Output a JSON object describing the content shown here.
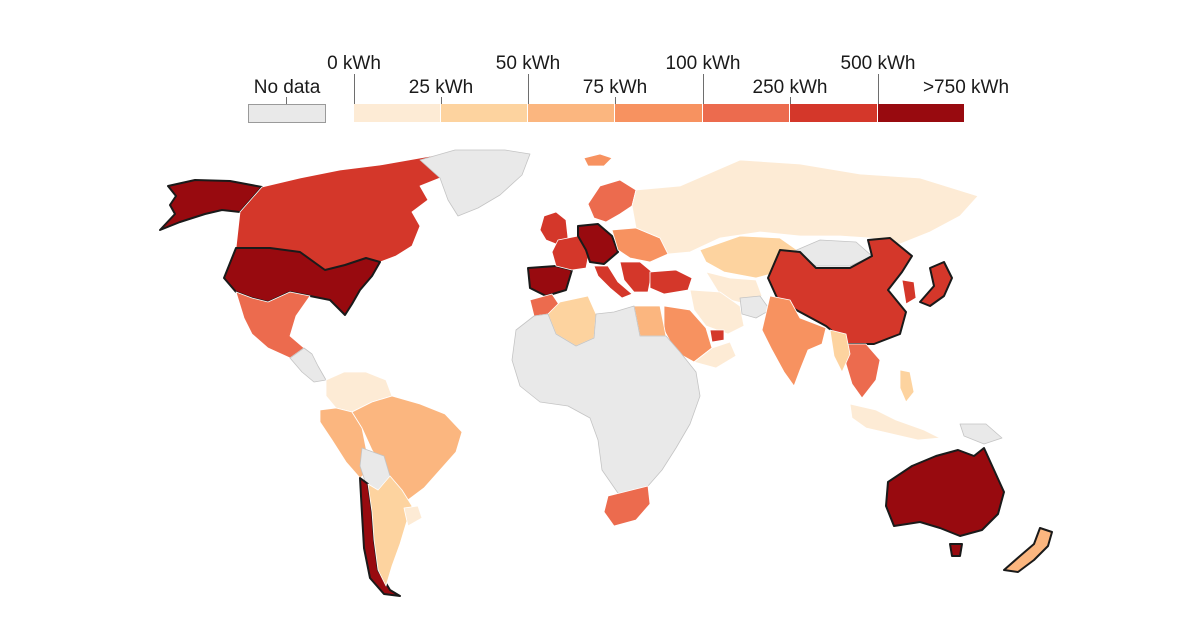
{
  "legend": {
    "no_data_label": "No data",
    "no_data_color": "#e9e9e9",
    "top_labels": [
      "0 kWh",
      "50 kWh",
      "100 kWh",
      "500 kWh"
    ],
    "bottom_labels": [
      "25 kWh",
      "75 kWh",
      "250 kWh",
      ">750 kWh"
    ],
    "bins": [
      {
        "range": "0–25 kWh",
        "color": "#fdebd5"
      },
      {
        "range": "25–50 kWh",
        "color": "#fdd39f"
      },
      {
        "range": "50–75 kWh",
        "color": "#fbb67f"
      },
      {
        "range": "75–100 kWh",
        "color": "#f79260"
      },
      {
        "range": "100–250 kWh",
        "color": "#ec6b4e"
      },
      {
        "range": "250–500 kWh",
        "color": "#d4372a"
      },
      {
        "range": ">750 kWh",
        "color": "#980a0f"
      }
    ]
  },
  "map": {
    "background": "#ffffff",
    "border_color": "#ffffff",
    "highlight_border_color": "#1a1a1a",
    "regions": [
      {
        "name": "Alaska / USA",
        "bin": 6,
        "highlight": true
      },
      {
        "name": "Canada",
        "bin": 5
      },
      {
        "name": "Greenland",
        "bin": -1
      },
      {
        "name": "United States",
        "bin": 6,
        "highlight": true
      },
      {
        "name": "Mexico",
        "bin": 4
      },
      {
        "name": "Central America",
        "bin": -1
      },
      {
        "name": "Colombia / Venezuela",
        "bin": 0
      },
      {
        "name": "Peru / Ecuador",
        "bin": 2
      },
      {
        "name": "Brazil",
        "bin": 2
      },
      {
        "name": "Bolivia",
        "bin": -1
      },
      {
        "name": "Chile",
        "bin": 6,
        "highlight": true
      },
      {
        "name": "Argentina",
        "bin": 1
      },
      {
        "name": "Uruguay",
        "bin": 0
      },
      {
        "name": "Iceland",
        "bin": 3
      },
      {
        "name": "United Kingdom / Ireland",
        "bin": 5
      },
      {
        "name": "Spain / Portugal",
        "bin": 6,
        "highlight": true
      },
      {
        "name": "France",
        "bin": 5
      },
      {
        "name": "Germany / Benelux",
        "bin": 6,
        "highlight": true
      },
      {
        "name": "Italy",
        "bin": 5
      },
      {
        "name": "Scandinavia",
        "bin": 4
      },
      {
        "name": "Eastern Europe",
        "bin": 3
      },
      {
        "name": "Balkans / Greece",
        "bin": 5
      },
      {
        "name": "Turkey",
        "bin": 5
      },
      {
        "name": "Russia",
        "bin": 0
      },
      {
        "name": "Kazakhstan",
        "bin": 1
      },
      {
        "name": "Central Asia",
        "bin": 0
      },
      {
        "name": "Mongolia",
        "bin": -1
      },
      {
        "name": "China",
        "bin": 5,
        "highlight": true
      },
      {
        "name": "Korea",
        "bin": 5
      },
      {
        "name": "Japan",
        "bin": 5,
        "highlight": true
      },
      {
        "name": "Iran",
        "bin": 0
      },
      {
        "name": "Afghanistan",
        "bin": -1
      },
      {
        "name": "Saudi Arabia",
        "bin": 3
      },
      {
        "name": "UAE",
        "bin": 5
      },
      {
        "name": "Oman / Yemen",
        "bin": 0
      },
      {
        "name": "India",
        "bin": 3
      },
      {
        "name": "Southeast Asia",
        "bin": 4
      },
      {
        "name": "Myanmar",
        "bin": 1
      },
      {
        "name": "Indonesia",
        "bin": 0
      },
      {
        "name": "Philippines",
        "bin": 1
      },
      {
        "name": "Papua New Guinea",
        "bin": -1
      },
      {
        "name": "Morocco",
        "bin": 4
      },
      {
        "name": "Algeria",
        "bin": 1
      },
      {
        "name": "Egypt",
        "bin": 2
      },
      {
        "name": "Africa",
        "bin": -1
      },
      {
        "name": "South Africa",
        "bin": 4
      },
      {
        "name": "Australia",
        "bin": 6,
        "highlight": true
      },
      {
        "name": "Tasmania",
        "bin": 6,
        "highlight": true
      },
      {
        "name": "New Zealand",
        "bin": 2,
        "highlight": true
      }
    ]
  }
}
